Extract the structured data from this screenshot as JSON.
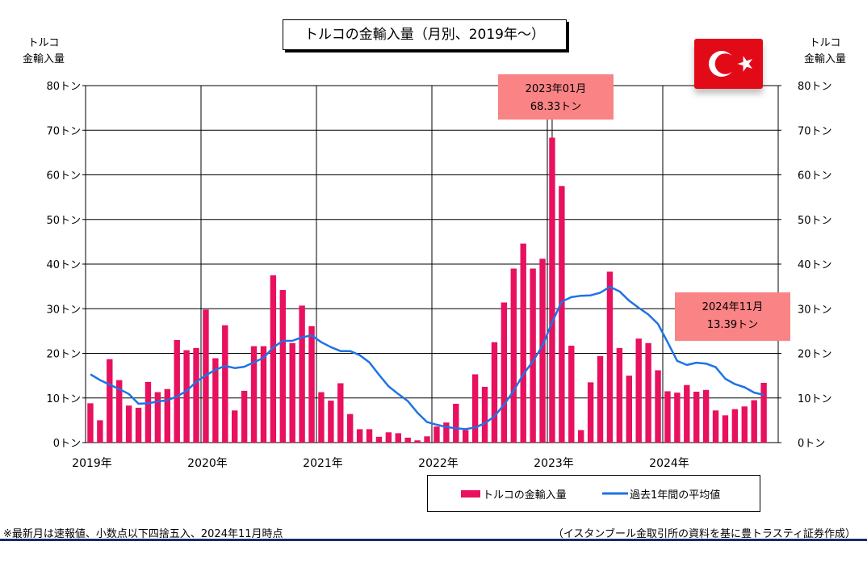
{
  "chart_data": {
    "type": "bar",
    "title": "トルコの金輸入量（月別、2019年～）",
    "ylabel_left": "トルコ\n金輸入量",
    "ylabel_right": "トルコ\n金輸入量",
    "ylim": [
      0,
      80
    ],
    "yticks": [
      "0トン",
      "10トン",
      "20トン",
      "30トン",
      "40トン",
      "50トン",
      "60トン",
      "70トン",
      "80トン"
    ],
    "year_labels": [
      "2019年",
      "2020年",
      "2021年",
      "2022年",
      "2023年",
      "2024年"
    ],
    "categories": [
      "2019-01",
      "2019-02",
      "2019-03",
      "2019-04",
      "2019-05",
      "2019-06",
      "2019-07",
      "2019-08",
      "2019-09",
      "2019-10",
      "2019-11",
      "2019-12",
      "2020-01",
      "2020-02",
      "2020-03",
      "2020-04",
      "2020-05",
      "2020-06",
      "2020-07",
      "2020-08",
      "2020-09",
      "2020-10",
      "2020-11",
      "2020-12",
      "2021-01",
      "2021-02",
      "2021-03",
      "2021-04",
      "2021-05",
      "2021-06",
      "2021-07",
      "2021-08",
      "2021-09",
      "2021-10",
      "2021-11",
      "2021-12",
      "2022-01",
      "2022-02",
      "2022-03",
      "2022-04",
      "2022-05",
      "2022-06",
      "2022-07",
      "2022-08",
      "2022-09",
      "2022-10",
      "2022-11",
      "2022-12",
      "2023-01",
      "2023-02",
      "2023-03",
      "2023-04",
      "2023-05",
      "2023-06",
      "2023-07",
      "2023-08",
      "2023-09",
      "2023-10",
      "2023-11",
      "2023-12",
      "2024-01",
      "2024-02",
      "2024-03",
      "2024-04",
      "2024-05",
      "2024-06",
      "2024-07",
      "2024-08",
      "2024-09",
      "2024-10",
      "2024-11"
    ],
    "series": [
      {
        "name": "トルコの金輸入量",
        "type": "bar",
        "color": "#e8105f",
        "values": [
          8.8,
          5.0,
          18.7,
          14.0,
          8.3,
          7.8,
          13.6,
          11.3,
          12.0,
          23.0,
          20.7,
          21.2,
          29.8,
          18.9,
          26.3,
          7.2,
          11.6,
          21.6,
          21.6,
          37.5,
          34.2,
          22.3,
          30.7,
          26.1,
          11.3,
          9.4,
          13.3,
          6.4,
          3.0,
          3.0,
          1.3,
          2.3,
          2.1,
          1.1,
          0.5,
          1.4,
          3.6,
          4.5,
          8.7,
          2.8,
          15.3,
          12.5,
          22.5,
          31.4,
          39.0,
          44.6,
          39.0,
          41.2,
          68.33,
          57.5,
          21.7,
          2.8,
          13.5,
          19.4,
          38.3,
          21.2,
          15.0,
          23.3,
          22.3,
          16.2,
          11.5,
          11.2,
          12.9,
          11.4,
          11.8,
          7.2,
          6.1,
          7.5,
          8.1,
          9.5,
          13.39
        ]
      },
      {
        "name": "過去1年間の平均値",
        "type": "line",
        "color": "#1e73e6",
        "values": [
          15.3,
          14.0,
          13.0,
          12.0,
          10.9,
          8.7,
          8.8,
          9.2,
          9.5,
          10.3,
          11.6,
          13.6,
          15.1,
          16.3,
          17.2,
          16.7,
          17.0,
          18.0,
          19.0,
          21.3,
          22.8,
          22.8,
          23.6,
          24.0,
          22.5,
          21.4,
          20.5,
          20.5,
          19.6,
          18.0,
          15.2,
          12.6,
          10.9,
          9.3,
          6.7,
          4.6,
          4.0,
          3.5,
          3.2,
          3.0,
          3.4,
          4.3,
          5.9,
          8.5,
          11.6,
          15.3,
          18.2,
          21.7,
          27.0,
          31.6,
          32.6,
          32.9,
          33.0,
          33.6,
          34.9,
          33.9,
          31.8,
          30.2,
          28.7,
          26.6,
          22.5,
          18.3,
          17.4,
          17.9,
          17.7,
          16.9,
          14.3,
          13.1,
          12.4,
          11.2,
          10.7
        ]
      }
    ],
    "annotations": [
      {
        "month": "2023-01",
        "line1": "2023年01月",
        "line2": "68.33トン"
      },
      {
        "month": "2024-11",
        "line1": "2024年11月",
        "line2": "13.39トン"
      }
    ],
    "grid": true,
    "legend_position": "bottom-right"
  },
  "flag_icon": "turkey-flag-icon",
  "notes": {
    "left": "※最新月は速報値、小数点以下四捨五入、2024年11月時点",
    "right": "（イスタンブール金取引所の資料を基に豊トラスティ証券作成）"
  }
}
